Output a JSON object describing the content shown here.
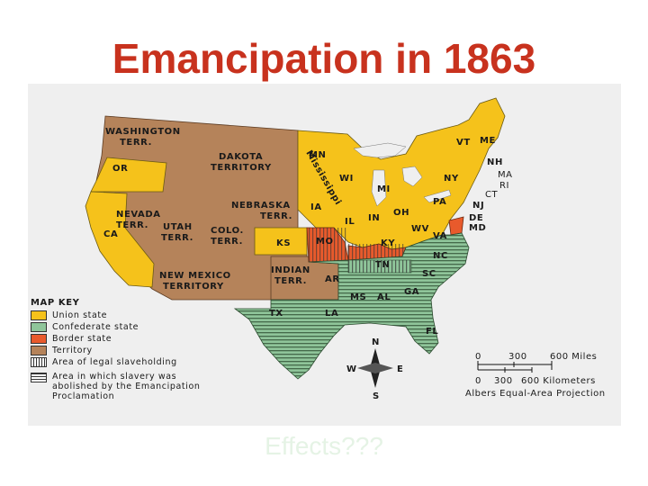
{
  "title": "Emancipation in 1863",
  "footer": "Effects???",
  "map": {
    "regions": {
      "washington_terr": "WASHINGTON TERR.",
      "dakota_territory": "DAKOTA TERRITORY",
      "or": "OR",
      "ca": "CA",
      "nevada_terr": "NEVADA TERR.",
      "utah_terr": "UTAH TERR.",
      "colo_terr": "COLO. TERR.",
      "nebraska_terr": "NEBRASKA TERR.",
      "ks": "KS",
      "new_mexico_territory": "NEW MEXICO TERRITORY",
      "indian_terr": "INDIAN TERR.",
      "mn": "MN",
      "wi": "WI",
      "mississippi_river": "Mississippi",
      "mi": "MI",
      "ia": "IA",
      "il": "IL",
      "in": "IN",
      "oh": "OH",
      "mo": "MO",
      "ky": "KY",
      "wv": "WV",
      "va": "VA",
      "pa": "PA",
      "ny": "NY",
      "vt": "VT",
      "me": "ME",
      "nh": "NH",
      "ma": "MA",
      "ri": "RI",
      "ct": "CT",
      "nj": "NJ",
      "de": "DE",
      "md": "MD",
      "nc": "NC",
      "tn": "TN",
      "sc": "SC",
      "ar": "AR",
      "ms": "MS",
      "al": "AL",
      "ga": "GA",
      "tx": "TX",
      "la": "LA",
      "fl": "FL"
    },
    "colors": {
      "union": "#f5c21b",
      "confederate": "#8fc59a",
      "border": "#e85a2c",
      "territory": "#b5835a",
      "water": "#efefef"
    },
    "compass": {
      "n": "N",
      "s": "S",
      "e": "E",
      "w": "W"
    },
    "scale": {
      "miles_zero": "0",
      "miles_mid": "300",
      "miles_end": "600 Miles",
      "km_zero": "0",
      "km_mid": "300",
      "km_end": "600 Kilometers",
      "projection": "Albers Equal-Area Projection"
    }
  },
  "key": {
    "title": "MAP KEY",
    "items": [
      {
        "label": "Union state",
        "swatch": "union"
      },
      {
        "label": "Confederate state",
        "swatch": "confederate"
      },
      {
        "label": "Border state",
        "swatch": "border"
      },
      {
        "label": "Territory",
        "swatch": "territory"
      },
      {
        "label": "Area of legal slaveholding",
        "swatch": "vertical-stripes"
      }
    ],
    "abolished_label": "Area in which slavery was abolished by the Emancipation Proclamation"
  }
}
